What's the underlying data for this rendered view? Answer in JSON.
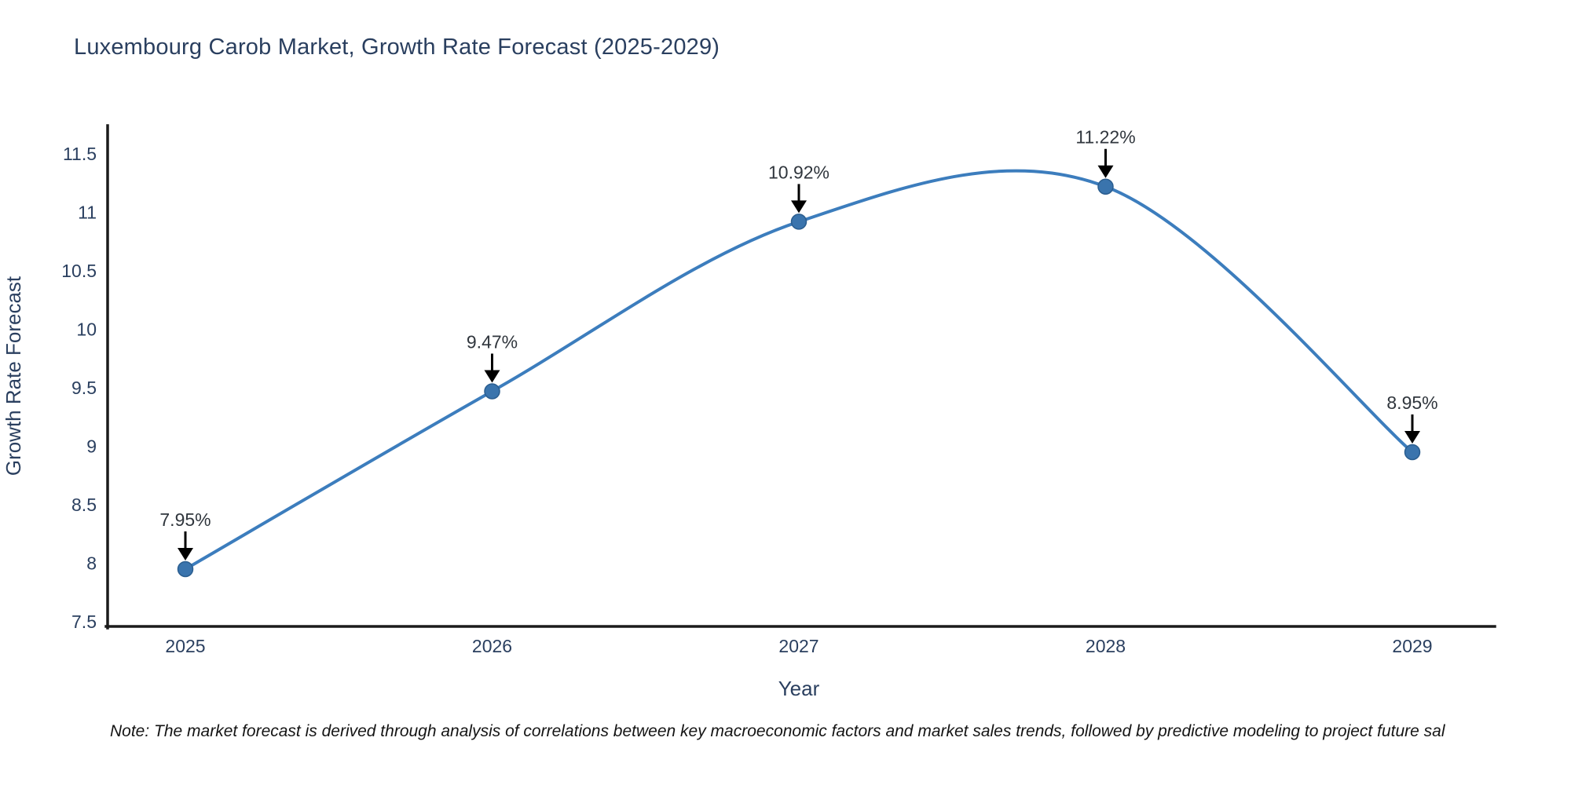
{
  "page": {
    "note": "Note: The market forecast is derived through analysis of correlations between key macroeconomic factors and market sales trends, followed by predictive modeling to project future sal"
  },
  "chart_data": {
    "type": "line",
    "title": "Luxembourg Carob Market, Growth Rate Forecast (2025-2029)",
    "x": [
      2025,
      2026,
      2027,
      2028,
      2029
    ],
    "series": [
      {
        "name": "Growth Rate Forecast",
        "values": [
          7.95,
          9.47,
          10.92,
          11.22,
          8.95
        ]
      }
    ],
    "point_labels": [
      "7.95%",
      "9.47%",
      "10.92%",
      "11.22%",
      "8.95%"
    ],
    "xlabel": "Year",
    "ylabel": "Growth Rate Forecast",
    "ylim": [
      7.5,
      11.5
    ],
    "yticks": [
      7.5,
      8,
      8.5,
      9,
      9.5,
      10,
      10.5,
      11,
      11.5
    ],
    "line_shape": "spline",
    "grid": false,
    "legend": "none",
    "colors": {
      "line": "#3c7dbd",
      "marker": "#3a74ad",
      "marker_edge": "#2a5d8f",
      "arrow": "#000000",
      "axis_text": "#2a3f5f",
      "annotation_text": "#30363d",
      "spine": "#1b1b1b",
      "background": "#ffffff"
    }
  }
}
